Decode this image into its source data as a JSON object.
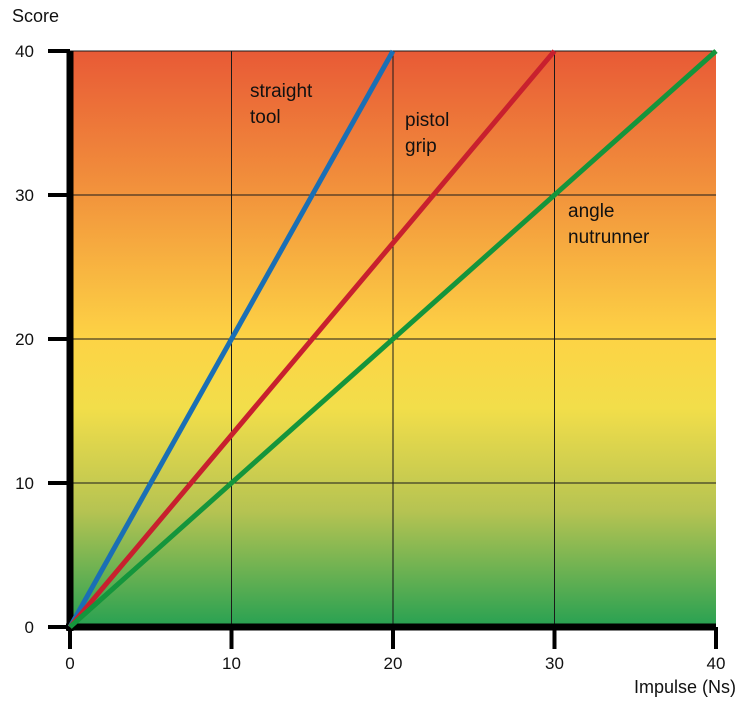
{
  "chart_data": {
    "type": "line",
    "title": "",
    "xlabel": "Impulse (Ns)",
    "ylabel": "Score",
    "xlim": [
      0,
      40
    ],
    "ylim": [
      0,
      40
    ],
    "xticks": [
      "0",
      "10",
      "20",
      "30",
      "40"
    ],
    "yticks": [
      "0",
      "10",
      "20",
      "30",
      "40"
    ],
    "grid": true,
    "background": "vertical gradient from green at score 0 through yellow to red at score 40",
    "series": [
      {
        "label_lines": [
          "straight",
          "tool"
        ],
        "color": "#1a6fb5",
        "x": [
          0,
          20
        ],
        "y": [
          0,
          40
        ]
      },
      {
        "label_lines": [
          "pistol",
          "grip"
        ],
        "color": "#c8202e",
        "x": [
          0,
          30
        ],
        "y": [
          0,
          40
        ]
      },
      {
        "label_lines": [
          "angle",
          "nutrunner"
        ],
        "color": "#14953c",
        "x": [
          0,
          40
        ],
        "y": [
          0,
          40
        ]
      }
    ]
  }
}
